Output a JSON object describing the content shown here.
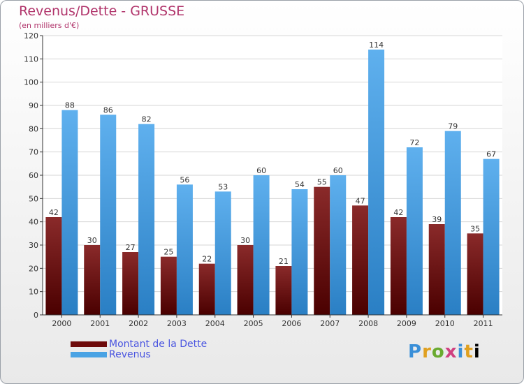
{
  "header": {
    "title": "Revenus/Dette - GRUSSE",
    "subtitle": "(en milliers d'€)"
  },
  "legend": {
    "items": [
      {
        "label": "Montant de la Dette",
        "color": "#6e0b0b"
      },
      {
        "label": "Revenus",
        "color": "#4aa3e4"
      }
    ]
  },
  "logo": {
    "text": "Proxiti"
  },
  "chart_data": {
    "type": "bar",
    "title": "Revenus/Dette - GRUSSE",
    "subtitle": "(en milliers d'€)",
    "xlabel": "",
    "ylabel": "",
    "ylim": [
      0,
      120
    ],
    "yticks": [
      0,
      10,
      20,
      30,
      40,
      50,
      60,
      70,
      80,
      90,
      100,
      110,
      120
    ],
    "grid": true,
    "legend_position": "bottom-left",
    "categories": [
      "2000",
      "2001",
      "2002",
      "2003",
      "2004",
      "2005",
      "2006",
      "2007",
      "2008",
      "2009",
      "2010",
      "2011"
    ],
    "series": [
      {
        "name": "Montant de la Dette",
        "color": "#6e0b0b",
        "values": [
          42,
          30,
          27,
          25,
          22,
          30,
          21,
          55,
          47,
          42,
          39,
          35
        ]
      },
      {
        "name": "Revenus",
        "color": "#4aa3e4",
        "values": [
          88,
          86,
          82,
          56,
          53,
          60,
          54,
          60,
          114,
          72,
          79,
          67
        ]
      }
    ]
  }
}
